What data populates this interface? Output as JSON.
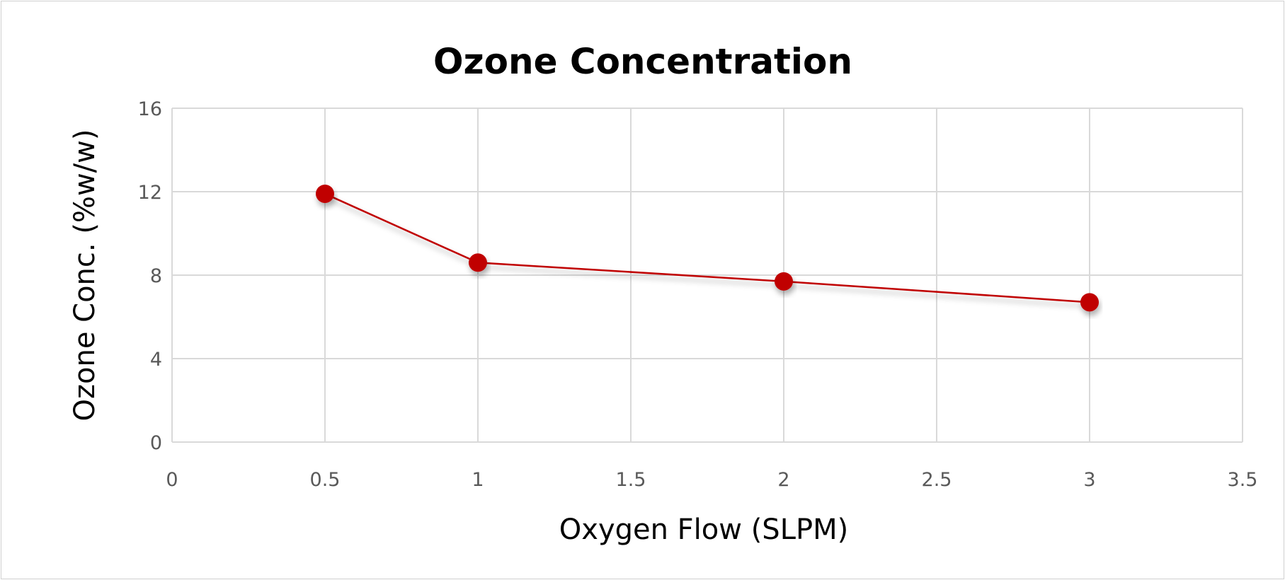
{
  "chart_data": {
    "type": "scatter",
    "mode": "lines+markers",
    "title": "Ozone Concentration",
    "xlabel": "Oxygen Flow (SLPM)",
    "ylabel": "Ozone Conc. (%w/w)",
    "xlim": [
      0,
      3.5
    ],
    "ylim": [
      0,
      16
    ],
    "xticks": [
      "0",
      "0.5",
      "1",
      "1.5",
      "2",
      "2.5",
      "3",
      "3.5"
    ],
    "yticks": [
      "0",
      "4",
      "8",
      "12",
      "16"
    ],
    "grid": true,
    "legend": "none",
    "series": [
      {
        "name": "Ozone Conc.",
        "color": "#c00000",
        "x": [
          0.5,
          1,
          2,
          3
        ],
        "y": [
          11.9,
          8.6,
          7.7,
          6.7
        ]
      }
    ]
  }
}
